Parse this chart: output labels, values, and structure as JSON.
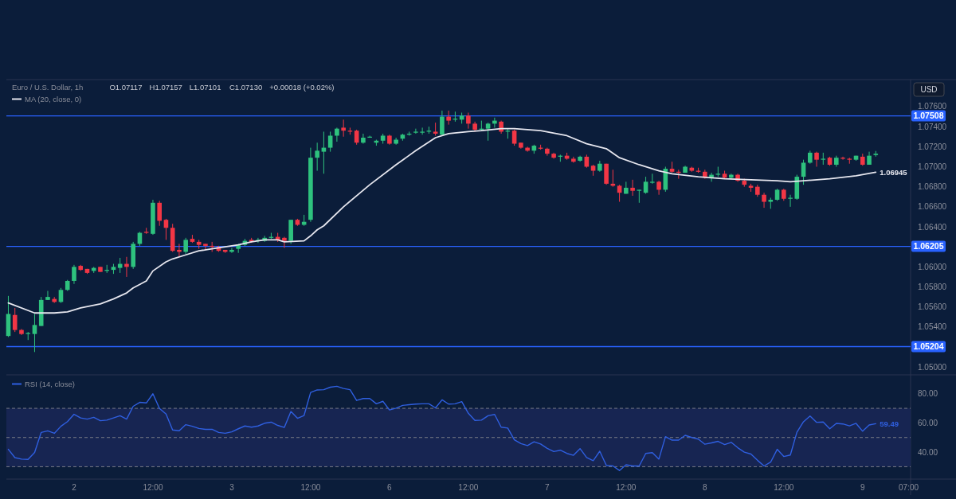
{
  "chart_data": [
    {
      "type": "candlestick",
      "title": "Euro / U.S. Dollar, 1h",
      "ylabel": "USD",
      "legend": "top left",
      "annotations": [
        "O1.07117",
        "H1.07157",
        "L1.07101",
        "C1.07130",
        "+0.00018 (+0.02%)"
      ],
      "ylim": [
        1.0493,
        1.0787
      ],
      "categories": [
        null,
        null,
        null,
        null,
        null,
        null,
        null,
        null,
        null,
        null,
        null,
        null,
        null,
        null,
        null,
        null,
        null,
        null,
        null,
        null,
        null,
        null,
        null,
        null,
        null,
        null,
        null,
        null,
        null,
        null,
        null,
        null,
        null,
        null,
        null,
        null,
        null,
        null,
        null,
        null,
        null,
        null,
        null,
        null,
        null,
        null,
        null,
        null,
        null,
        null,
        null,
        null,
        null,
        null,
        null,
        null,
        null,
        null,
        null,
        null,
        null,
        null,
        null,
        null,
        null,
        null,
        null,
        null,
        null,
        null,
        null,
        null,
        null,
        null,
        null,
        null,
        null,
        null,
        null,
        null,
        null,
        null,
        null,
        null,
        null,
        null,
        null,
        null,
        null,
        null,
        null,
        null,
        null,
        null,
        null,
        null,
        null,
        null,
        null,
        null,
        null,
        null,
        null,
        null,
        null,
        null,
        null,
        null,
        null,
        null,
        null,
        null,
        null,
        null,
        null,
        null,
        null,
        null,
        null,
        null,
        null,
        null,
        null,
        null,
        null,
        null,
        null,
        null,
        null,
        null,
        null,
        null,
        null,
        null,
        null,
        null,
        null,
        null
      ],
      "yticks": [
        {
          "value": 1.05,
          "label": "1.05000"
        },
        {
          "value": 1.054,
          "label": "1.05400"
        },
        {
          "value": 1.056,
          "label": "1.05600"
        },
        {
          "value": 1.058,
          "label": "1.05800"
        },
        {
          "value": 1.06,
          "label": "1.06000"
        },
        {
          "value": 1.064,
          "label": "1.06400"
        },
        {
          "value": 1.066,
          "label": "1.06600"
        },
        {
          "value": 1.068,
          "label": "1.06800"
        },
        {
          "value": 1.07,
          "label": "1.07000"
        },
        {
          "value": 1.072,
          "label": "1.07200"
        },
        {
          "value": 1.074,
          "label": "1.07400"
        },
        {
          "value": 1.076,
          "label": "1.07600"
        }
      ],
      "ref_lines": [
        {
          "axis": "y",
          "value": 1.07508,
          "label": "1.07508",
          "color": "#2962ff"
        },
        {
          "axis": "y",
          "value": 1.06205,
          "label": "1.06205",
          "color": "#2962ff"
        },
        {
          "axis": "y",
          "value": 1.05204,
          "label": "1.05204",
          "color": "#2962ff"
        }
      ],
      "ohlc": [
        [
          1.0531,
          1.0571,
          1.053,
          1.0553
        ],
        [
          1.0552,
          1.0559,
          1.0535,
          1.0537
        ],
        [
          1.0537,
          1.0538,
          1.0532,
          1.0533
        ],
        [
          1.0533,
          1.0535,
          1.0527,
          1.0534
        ],
        [
          1.0533,
          1.0553,
          1.0515,
          1.0542
        ],
        [
          1.0541,
          1.057,
          1.0541,
          1.0567
        ],
        [
          1.0567,
          1.0576,
          1.0567,
          1.057
        ],
        [
          1.0568,
          1.057,
          1.0564,
          1.0565
        ],
        [
          1.0565,
          1.0579,
          1.0564,
          1.0577
        ],
        [
          1.0577,
          1.0587,
          1.0576,
          1.0586
        ],
        [
          1.0586,
          1.0602,
          1.0583,
          1.06
        ],
        [
          1.0601,
          1.0602,
          1.0596,
          1.0597
        ],
        [
          1.0598,
          1.0598,
          1.0593,
          1.0594
        ],
        [
          1.0596,
          1.06,
          1.0594,
          1.0599
        ],
        [
          1.06,
          1.06,
          1.0595,
          1.0595
        ],
        [
          1.0596,
          1.0602,
          1.0594,
          1.0597
        ],
        [
          1.0597,
          1.0603,
          1.0593,
          1.06
        ],
        [
          1.0599,
          1.0609,
          1.0594,
          1.0603
        ],
        [
          1.0603,
          1.061,
          1.059,
          1.06
        ],
        [
          1.06,
          1.0625,
          1.0598,
          1.0623
        ],
        [
          1.0623,
          1.0635,
          1.0621,
          1.0634
        ],
        [
          1.0635,
          1.0639,
          1.0633,
          1.0634
        ],
        [
          1.0633,
          1.0667,
          1.0632,
          1.0664
        ],
        [
          1.0664,
          1.0666,
          1.0641,
          1.0646
        ],
        [
          1.0647,
          1.0648,
          1.0627,
          1.0639
        ],
        [
          1.0639,
          1.0643,
          1.0615,
          1.0616
        ],
        [
          1.0617,
          1.0623,
          1.061,
          1.0615
        ],
        [
          1.0615,
          1.0629,
          1.0613,
          1.0627
        ],
        [
          1.0628,
          1.0632,
          1.0624,
          1.0625
        ],
        [
          1.0625,
          1.0627,
          1.0618,
          1.0622
        ],
        [
          1.0623,
          1.0623,
          1.0617,
          1.0621
        ],
        [
          1.0621,
          1.0625,
          1.0615,
          1.062
        ],
        [
          1.062,
          1.0621,
          1.0615,
          1.0616
        ],
        [
          1.0617,
          1.0617,
          1.0614,
          1.0615
        ],
        [
          1.0615,
          1.0619,
          1.0614,
          1.0617
        ],
        [
          1.0618,
          1.0623,
          1.0614,
          1.0622
        ],
        [
          1.0622,
          1.0628,
          1.0621,
          1.0626
        ],
        [
          1.0627,
          1.0629,
          1.0624,
          1.0625
        ],
        [
          1.0626,
          1.0629,
          1.0624,
          1.0627
        ],
        [
          1.0626,
          1.0631,
          1.0625,
          1.0629
        ],
        [
          1.0629,
          1.0634,
          1.0628,
          1.063
        ],
        [
          1.063,
          1.0634,
          1.0625,
          1.0627
        ],
        [
          1.0629,
          1.063,
          1.0619,
          1.0626
        ],
        [
          1.0626,
          1.0647,
          1.0623,
          1.0647
        ],
        [
          1.0647,
          1.0648,
          1.0641,
          1.0642
        ],
        [
          1.0642,
          1.0652,
          1.0641,
          1.0645
        ],
        [
          1.0647,
          1.0719,
          1.0645,
          1.0709
        ],
        [
          1.0709,
          1.0724,
          1.0696,
          1.0716
        ],
        [
          1.0715,
          1.0735,
          1.0693,
          1.0719
        ],
        [
          1.0719,
          1.0735,
          1.0715,
          1.0731
        ],
        [
          1.0731,
          1.0739,
          1.0725,
          1.0738
        ],
        [
          1.0739,
          1.0747,
          1.073,
          1.0736
        ],
        [
          1.0736,
          1.0739,
          1.0732,
          1.0735
        ],
        [
          1.0736,
          1.0737,
          1.0722,
          1.0724
        ],
        [
          1.0724,
          1.0733,
          1.0723,
          1.0729
        ],
        [
          1.0729,
          1.0731,
          1.0729,
          1.073
        ],
        [
          1.0724,
          1.0727,
          1.0721,
          1.0726
        ],
        [
          1.0726,
          1.0733,
          1.0723,
          1.0731
        ],
        [
          1.0731,
          1.0732,
          1.0722,
          1.0723
        ],
        [
          1.0723,
          1.0729,
          1.0722,
          1.0727
        ],
        [
          1.0728,
          1.0733,
          1.0726,
          1.0732
        ],
        [
          1.0732,
          1.0735,
          1.0731,
          1.0733
        ],
        [
          1.0734,
          1.0738,
          1.0733,
          1.0735
        ],
        [
          1.0734,
          1.0739,
          1.0732,
          1.0735
        ],
        [
          1.0735,
          1.074,
          1.0733,
          1.0736
        ],
        [
          1.0735,
          1.0744,
          1.0731,
          1.0733
        ],
        [
          1.0732,
          1.0756,
          1.0731,
          1.075
        ],
        [
          1.075,
          1.0756,
          1.0742,
          1.0746
        ],
        [
          1.0747,
          1.0755,
          1.0745,
          1.0748
        ],
        [
          1.0747,
          1.0754,
          1.0743,
          1.0751
        ],
        [
          1.0751,
          1.0754,
          1.0738,
          1.0743
        ],
        [
          1.0743,
          1.0745,
          1.0735,
          1.0737
        ],
        [
          1.0737,
          1.0746,
          1.0736,
          1.0738
        ],
        [
          1.0738,
          1.0744,
          1.0726,
          1.0743
        ],
        [
          1.0743,
          1.0749,
          1.0739,
          1.0746
        ],
        [
          1.0745,
          1.0746,
          1.0733,
          1.0735
        ],
        [
          1.0735,
          1.0738,
          1.0728,
          1.0736
        ],
        [
          1.0736,
          1.0737,
          1.0721,
          1.0723
        ],
        [
          1.0724,
          1.0724,
          1.0718,
          1.0719
        ],
        [
          1.0719,
          1.072,
          1.0715,
          1.0716
        ],
        [
          1.0716,
          1.0722,
          1.0713,
          1.0721
        ],
        [
          1.0719,
          1.0722,
          1.0717,
          1.0718
        ],
        [
          1.0718,
          1.0719,
          1.0711,
          1.0713
        ],
        [
          1.0713,
          1.0714,
          1.0708,
          1.0709
        ],
        [
          1.071,
          1.0712,
          1.0705,
          1.0711
        ],
        [
          1.0711,
          1.0714,
          1.0707,
          1.0708
        ],
        [
          1.0708,
          1.071,
          1.0704,
          1.0705
        ],
        [
          1.0706,
          1.0711,
          1.0705,
          1.071
        ],
        [
          1.071,
          1.0712,
          1.0699,
          1.07
        ],
        [
          1.0701,
          1.0702,
          1.0691,
          1.0696
        ],
        [
          1.0696,
          1.0706,
          1.0695,
          1.0703
        ],
        [
          1.0703,
          1.0703,
          1.0682,
          1.0683
        ],
        [
          1.0683,
          1.0697,
          1.068,
          1.0681
        ],
        [
          1.0681,
          1.0682,
          1.0665,
          1.0674
        ],
        [
          1.0673,
          1.0685,
          1.0673,
          1.0679
        ],
        [
          1.0679,
          1.0687,
          1.0671,
          1.0676
        ],
        [
          1.0676,
          1.0677,
          1.0664,
          1.0677
        ],
        [
          1.0674,
          1.069,
          1.0673,
          1.0685
        ],
        [
          1.0684,
          1.0693,
          1.0683,
          1.0685
        ],
        [
          1.0685,
          1.0686,
          1.0672,
          1.0677
        ],
        [
          1.0677,
          1.07,
          1.0675,
          1.0698
        ],
        [
          1.0698,
          1.0705,
          1.0694,
          1.0695
        ],
        [
          1.0695,
          1.0697,
          1.0688,
          1.0694
        ],
        [
          1.0694,
          1.0701,
          1.0694,
          1.07
        ],
        [
          1.0699,
          1.07,
          1.0695,
          1.0696
        ],
        [
          1.0696,
          1.0699,
          1.0694,
          1.0695
        ],
        [
          1.0695,
          1.0697,
          1.0688,
          1.0689
        ],
        [
          1.0689,
          1.0694,
          1.0685,
          1.0692
        ],
        [
          1.0692,
          1.07,
          1.069,
          1.0693
        ],
        [
          1.0693,
          1.0696,
          1.0688,
          1.0689
        ],
        [
          1.0689,
          1.0693,
          1.0688,
          1.0692
        ],
        [
          1.0692,
          1.0693,
          1.0685,
          1.0686
        ],
        [
          1.0686,
          1.0688,
          1.068,
          1.0682
        ],
        [
          1.0681,
          1.0683,
          1.0675,
          1.0679
        ],
        [
          1.068,
          1.0682,
          1.067,
          1.0672
        ],
        [
          1.0672,
          1.0674,
          1.0659,
          1.0665
        ],
        [
          1.0665,
          1.0669,
          1.0658,
          1.0667
        ],
        [
          1.0667,
          1.0678,
          1.0666,
          1.0677
        ],
        [
          1.0677,
          1.0678,
          1.0666,
          1.0668
        ],
        [
          1.0668,
          1.0672,
          1.066,
          1.0669
        ],
        [
          1.0668,
          1.0692,
          1.0667,
          1.069
        ],
        [
          1.069,
          1.0707,
          1.0682,
          1.0704
        ],
        [
          1.0704,
          1.0716,
          1.0703,
          1.0714
        ],
        [
          1.0714,
          1.0715,
          1.07,
          1.0707
        ],
        [
          1.0707,
          1.0714,
          1.0702,
          1.0708
        ],
        [
          1.0709,
          1.071,
          1.0701,
          1.0702
        ],
        [
          1.0702,
          1.0711,
          1.07,
          1.0709
        ],
        [
          1.0709,
          1.071,
          1.0707,
          1.0708
        ],
        [
          1.0708,
          1.0709,
          1.0703,
          1.0707
        ],
        [
          1.0707,
          1.0711,
          1.0706,
          1.0711
        ],
        [
          1.071,
          1.0713,
          1.0701,
          1.0702
        ],
        [
          1.0702,
          1.0715,
          1.0702,
          1.0711
        ],
        [
          1.07117,
          1.07157,
          1.07101,
          1.0713
        ],
        null,
        null,
        null,
        null,
        null
      ],
      "series": [
        {
          "name": "MA (20, close, 0)",
          "type": "line",
          "color": "#e6e6ee",
          "values": [
            1.0564,
            null,
            null,
            null,
            1.0554,
            null,
            null,
            1.0554,
            null,
            1.0555,
            null,
            1.0559,
            null,
            null,
            1.0563,
            null,
            1.0568,
            null,
            1.0574,
            1.0579,
            null,
            1.0586,
            1.0596,
            null,
            1.0605,
            1.0608,
            null,
            1.0612,
            null,
            1.0616,
            null,
            1.0618,
            null,
            1.062,
            null,
            1.0622,
            null,
            1.0625,
            null,
            1.0627,
            null,
            1.0627,
            1.0625,
            null,
            null,
            1.0626,
            1.0631,
            1.0637,
            1.0641,
            null,
            null,
            1.066,
            null,
            null,
            null,
            1.0682,
            null,
            null,
            null,
            1.0702,
            null,
            null,
            1.0716,
            null,
            null,
            1.0729,
            null,
            1.0733,
            null,
            null,
            1.0735,
            null,
            1.0736,
            null,
            null,
            1.0738,
            null,
            1.0738,
            null,
            null,
            null,
            1.0736,
            null,
            null,
            null,
            1.0731,
            null,
            null,
            1.0723,
            null,
            null,
            1.0718,
            null,
            1.0709,
            null,
            null,
            1.0702,
            null,
            null,
            1.0696,
            null,
            1.0693,
            null,
            null,
            null,
            1.069,
            null,
            null,
            null,
            1.0688,
            null,
            null,
            null,
            1.0687,
            null,
            null,
            null,
            1.0686,
            null,
            1.0685,
            null,
            1.0686,
            null,
            null,
            null,
            1.0688,
            null,
            null,
            null,
            1.0691,
            null,
            null,
            1.06945,
            null,
            null,
            null,
            null,
            null
          ],
          "value_labels": [
            null,
            null,
            null,
            null,
            null,
            null,
            null,
            null,
            null,
            null,
            null,
            null,
            null,
            null,
            null,
            null,
            null,
            null,
            null,
            null,
            null,
            null,
            null,
            null,
            null,
            null,
            null,
            null,
            null,
            null,
            null,
            null,
            null,
            null,
            null,
            null,
            null,
            null,
            null,
            null,
            null,
            null,
            null,
            null,
            null,
            null,
            null,
            null,
            null,
            null,
            null,
            null,
            null,
            null,
            null,
            null,
            null,
            null,
            null,
            null,
            null,
            null,
            null,
            null,
            null,
            null,
            null,
            null,
            null,
            null,
            null,
            null,
            null,
            null,
            null,
            null,
            null,
            null,
            null,
            null,
            null,
            null,
            null,
            null,
            null,
            null,
            null,
            null,
            null,
            null,
            null,
            null,
            null,
            null,
            null,
            null,
            null,
            null,
            null,
            null,
            null,
            null,
            null,
            null,
            null,
            null,
            null,
            null,
            null,
            null,
            null,
            null,
            null,
            null,
            null,
            null,
            null,
            null,
            null,
            null,
            null,
            null,
            null,
            null,
            null,
            null,
            null,
            null,
            null,
            null,
            null,
            null,
            "1.06945",
            null,
            null,
            null,
            null,
            null
          ]
        }
      ]
    },
    {
      "type": "line",
      "legend": "top left",
      "ylim": [
        21.5,
        92.4
      ],
      "categories": [
        null,
        null,
        null,
        null,
        null,
        null,
        null,
        null,
        null,
        null,
        "2",
        null,
        null,
        null,
        null,
        null,
        null,
        null,
        null,
        null,
        null,
        null,
        "12:00",
        null,
        null,
        null,
        null,
        null,
        null,
        null,
        null,
        null,
        null,
        null,
        "3",
        null,
        null,
        null,
        null,
        null,
        null,
        null,
        null,
        null,
        null,
        null,
        "12:00",
        null,
        null,
        null,
        null,
        null,
        null,
        null,
        null,
        null,
        null,
        null,
        "6",
        null,
        null,
        null,
        null,
        null,
        null,
        null,
        null,
        null,
        null,
        null,
        "12:00",
        null,
        null,
        null,
        null,
        null,
        null,
        null,
        null,
        null,
        null,
        null,
        "7",
        null,
        null,
        null,
        null,
        null,
        null,
        null,
        null,
        null,
        null,
        null,
        "12:00",
        null,
        null,
        null,
        null,
        null,
        null,
        null,
        null,
        null,
        null,
        null,
        "8",
        null,
        null,
        null,
        null,
        null,
        null,
        null,
        null,
        null,
        null,
        null,
        "12:00",
        null,
        null,
        null,
        null,
        null,
        null,
        null,
        null,
        null,
        null,
        null,
        "9",
        null,
        null,
        null,
        null,
        null,
        null,
        "07:00"
      ],
      "yticks": [
        {
          "value": 40,
          "label": "40.00"
        },
        {
          "value": 60,
          "label": "60.00"
        },
        {
          "value": 80,
          "label": "80.00"
        }
      ],
      "bands": [
        {
          "axis": "y",
          "from": 30,
          "to": 70,
          "color": "#172552"
        }
      ],
      "ref_lines": [
        {
          "axis": "y",
          "value": 70,
          "color": "#787b86",
          "line_style": "dashed"
        },
        {
          "axis": "y",
          "value": 50,
          "color": "#787b86",
          "line_style": "dashed"
        },
        {
          "axis": "y",
          "value": 30,
          "color": "#787b86",
          "line_style": "dashed"
        }
      ],
      "series": [
        {
          "name": "RSI (14, close)",
          "color": "#2f5fe0",
          "values": [
            41.9,
            36.2,
            35.2,
            35.0,
            39.8,
            53.5,
            54.6,
            52.9,
            57.7,
            60.9,
            65.9,
            63.4,
            62.6,
            63.8,
            61.5,
            61.9,
            63.4,
            64.9,
            62.6,
            71.4,
            74.1,
            73.7,
            80.0,
            69.9,
            66.1,
            55.2,
            54.6,
            58.8,
            57.7,
            56.2,
            55.6,
            55.6,
            53.5,
            52.9,
            53.9,
            56.0,
            57.9,
            57.1,
            57.9,
            59.8,
            60.5,
            58.3,
            56.9,
            67.8,
            63.2,
            65.1,
            80.9,
            82.6,
            82.8,
            84.5,
            85.1,
            83.6,
            82.8,
            75.4,
            76.7,
            76.7,
            73.1,
            74.8,
            68.9,
            70.1,
            72.0,
            72.5,
            72.9,
            73.1,
            73.1,
            70.3,
            75.8,
            72.9,
            73.1,
            74.6,
            66.6,
            61.7,
            61.9,
            64.9,
            65.8,
            57.1,
            56.5,
            48.4,
            45.8,
            44.5,
            47.1,
            45.6,
            42.6,
            40.4,
            41.3,
            39.1,
            37.8,
            42.4,
            36.3,
            34.1,
            40.6,
            30.9,
            30.5,
            27.4,
            31.3,
            30.5,
            30.5,
            39.1,
            39.6,
            35.2,
            50.6,
            48.2,
            48.2,
            51.5,
            50.0,
            48.9,
            45.4,
            46.3,
            47.4,
            45.2,
            46.7,
            43.0,
            40.0,
            38.7,
            34.4,
            30.5,
            33.1,
            41.9,
            37.0,
            38.0,
            53.6,
            60.8,
            64.7,
            60.4,
            60.6,
            56.0,
            59.7,
            59.3,
            58.0,
            59.7,
            54.3,
            58.6,
            59.49,
            null,
            null,
            null,
            null,
            null
          ],
          "value_labels": [
            null,
            null,
            null,
            null,
            null,
            null,
            null,
            null,
            null,
            null,
            null,
            null,
            null,
            null,
            null,
            null,
            null,
            null,
            null,
            null,
            null,
            null,
            null,
            null,
            null,
            null,
            null,
            null,
            null,
            null,
            null,
            null,
            null,
            null,
            null,
            null,
            null,
            null,
            null,
            null,
            null,
            null,
            null,
            null,
            null,
            null,
            null,
            null,
            null,
            null,
            null,
            null,
            null,
            null,
            null,
            null,
            null,
            null,
            null,
            null,
            null,
            null,
            null,
            null,
            null,
            null,
            null,
            null,
            null,
            null,
            null,
            null,
            null,
            null,
            null,
            null,
            null,
            null,
            null,
            null,
            null,
            null,
            null,
            null,
            null,
            null,
            null,
            null,
            null,
            null,
            null,
            null,
            null,
            null,
            null,
            null,
            null,
            null,
            null,
            null,
            null,
            null,
            null,
            null,
            null,
            null,
            null,
            null,
            null,
            null,
            null,
            null,
            null,
            null,
            null,
            null,
            null,
            null,
            null,
            null,
            null,
            null,
            null,
            null,
            null,
            null,
            null,
            null,
            null,
            null,
            null,
            null,
            "59.49",
            null,
            null,
            null,
            null,
            null
          ]
        }
      ]
    }
  ]
}
